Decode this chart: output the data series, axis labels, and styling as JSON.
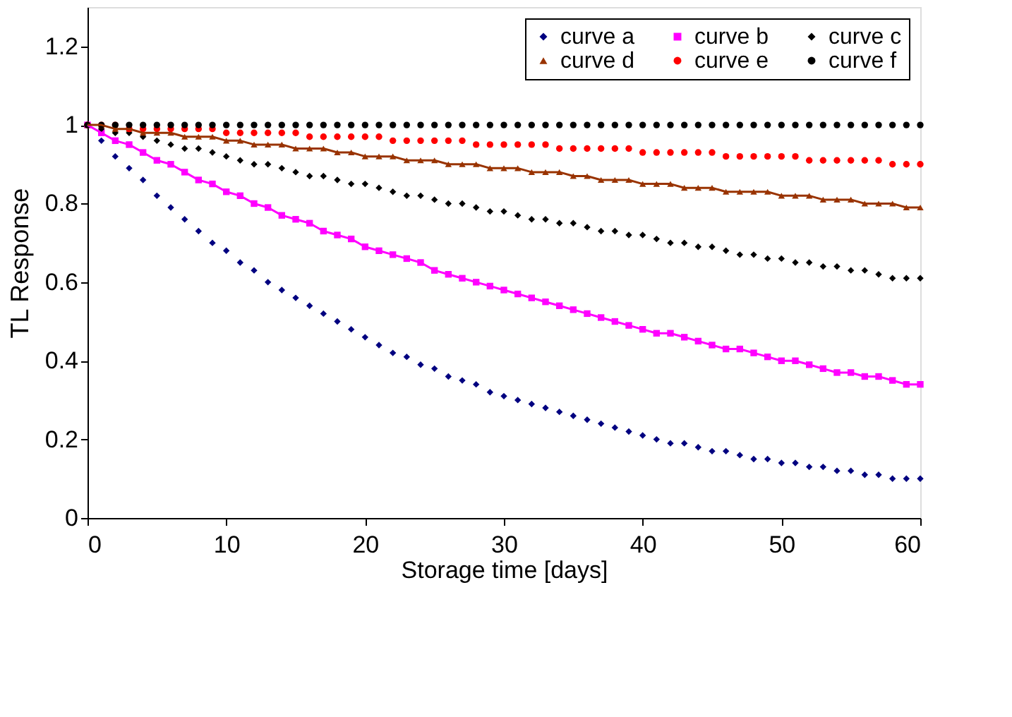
{
  "chart_data": {
    "type": "scatter",
    "xlabel": "Storage time [days]",
    "ylabel": "TL Response",
    "x": [
      0,
      1,
      2,
      3,
      4,
      5,
      6,
      7,
      8,
      9,
      10,
      11,
      12,
      13,
      14,
      15,
      16,
      17,
      18,
      19,
      20,
      21,
      22,
      23,
      24,
      25,
      26,
      27,
      28,
      29,
      30,
      31,
      32,
      33,
      34,
      35,
      36,
      37,
      38,
      39,
      40,
      41,
      42,
      43,
      44,
      45,
      46,
      47,
      48,
      49,
      50,
      51,
      52,
      53,
      54,
      55,
      56,
      57,
      58,
      59,
      60
    ],
    "series": [
      {
        "name": "curve a",
        "marker": "diamond",
        "color": "#000080",
        "values": [
          null,
          0.96,
          0.92,
          0.89,
          0.86,
          0.82,
          0.79,
          0.76,
          0.73,
          0.7,
          0.68,
          0.65,
          0.63,
          0.6,
          0.58,
          0.56,
          0.54,
          0.52,
          0.5,
          0.48,
          0.46,
          0.44,
          0.42,
          0.41,
          0.39,
          0.38,
          0.36,
          0.35,
          0.34,
          0.32,
          0.31,
          0.3,
          0.29,
          0.28,
          0.27,
          0.26,
          0.25,
          0.24,
          0.23,
          0.22,
          0.21,
          0.2,
          0.19,
          0.19,
          0.18,
          0.17,
          0.17,
          0.16,
          0.15,
          0.15,
          0.14,
          0.14,
          0.13,
          0.13,
          0.12,
          0.12,
          0.11,
          0.11,
          0.1,
          0.1,
          0.1
        ]
      },
      {
        "name": "curve b",
        "type": "line",
        "marker": "square",
        "color": "#ff00ff",
        "values": [
          1.0,
          0.98,
          0.96,
          0.95,
          0.93,
          0.91,
          0.9,
          0.88,
          0.86,
          0.85,
          0.83,
          0.82,
          0.8,
          0.79,
          0.77,
          0.76,
          0.75,
          0.73,
          0.72,
          0.71,
          0.69,
          0.68,
          0.67,
          0.66,
          0.65,
          0.63,
          0.62,
          0.61,
          0.6,
          0.59,
          0.58,
          0.57,
          0.56,
          0.55,
          0.54,
          0.53,
          0.52,
          0.51,
          0.5,
          0.49,
          0.48,
          0.47,
          0.47,
          0.46,
          0.45,
          0.44,
          0.43,
          0.43,
          0.42,
          0.41,
          0.4,
          0.4,
          0.39,
          0.38,
          0.37,
          0.37,
          0.36,
          0.36,
          0.35,
          0.34,
          0.34
        ]
      },
      {
        "name": "curve c",
        "marker": "diamond",
        "color": "#000000",
        "values": [
          1.0,
          0.99,
          0.98,
          0.98,
          0.97,
          0.96,
          0.95,
          0.94,
          0.94,
          0.93,
          0.92,
          0.91,
          0.9,
          0.9,
          0.89,
          0.88,
          0.87,
          0.87,
          0.86,
          0.85,
          0.85,
          0.84,
          0.83,
          0.82,
          0.82,
          0.81,
          0.8,
          0.8,
          0.79,
          0.78,
          0.78,
          0.77,
          0.76,
          0.76,
          0.75,
          0.75,
          0.74,
          0.73,
          0.73,
          0.72,
          0.72,
          0.71,
          0.7,
          0.7,
          0.69,
          0.69,
          0.68,
          0.67,
          0.67,
          0.66,
          0.66,
          0.65,
          0.65,
          0.64,
          0.64,
          0.63,
          0.63,
          0.62,
          0.61,
          0.61,
          0.61
        ]
      },
      {
        "name": "curve d",
        "type": "line",
        "marker": "triangle",
        "color": "#993300",
        "values": [
          1.0,
          1.0,
          0.99,
          0.99,
          0.98,
          0.98,
          0.98,
          0.97,
          0.97,
          0.97,
          0.96,
          0.96,
          0.95,
          0.95,
          0.95,
          0.94,
          0.94,
          0.94,
          0.93,
          0.93,
          0.92,
          0.92,
          0.92,
          0.91,
          0.91,
          0.91,
          0.9,
          0.9,
          0.9,
          0.89,
          0.89,
          0.89,
          0.88,
          0.88,
          0.88,
          0.87,
          0.87,
          0.86,
          0.86,
          0.86,
          0.85,
          0.85,
          0.85,
          0.84,
          0.84,
          0.84,
          0.83,
          0.83,
          0.83,
          0.83,
          0.82,
          0.82,
          0.82,
          0.81,
          0.81,
          0.81,
          0.8,
          0.8,
          0.8,
          0.79,
          0.79
        ]
      },
      {
        "name": "curve e",
        "marker": "circle",
        "color": "#ff0000",
        "values": [
          1.0,
          1.0,
          1.0,
          0.99,
          0.99,
          0.99,
          0.99,
          0.99,
          0.99,
          0.99,
          0.98,
          0.98,
          0.98,
          0.98,
          0.98,
          0.98,
          0.97,
          0.97,
          0.97,
          0.97,
          0.97,
          0.97,
          0.96,
          0.96,
          0.96,
          0.96,
          0.96,
          0.96,
          0.95,
          0.95,
          0.95,
          0.95,
          0.95,
          0.95,
          0.94,
          0.94,
          0.94,
          0.94,
          0.94,
          0.94,
          0.93,
          0.93,
          0.93,
          0.93,
          0.93,
          0.93,
          0.92,
          0.92,
          0.92,
          0.92,
          0.92,
          0.92,
          0.91,
          0.91,
          0.91,
          0.91,
          0.91,
          0.91,
          0.9,
          0.9,
          0.9
        ]
      },
      {
        "name": "curve f",
        "marker": "circle",
        "color": "#000000",
        "values": [
          1,
          1,
          1,
          1,
          1,
          1,
          1,
          1,
          1,
          1,
          1,
          1,
          1,
          1,
          1,
          1,
          1,
          1,
          1,
          1,
          1,
          1,
          1,
          1,
          1,
          1,
          1,
          1,
          1,
          1,
          1,
          1,
          1,
          1,
          1,
          1,
          1,
          1,
          1,
          1,
          1,
          1,
          1,
          1,
          1,
          1,
          1,
          1,
          1,
          1,
          1,
          1,
          1,
          1,
          1,
          1,
          1,
          1,
          1,
          1,
          1
        ]
      }
    ],
    "xlim": [
      0,
      60
    ],
    "xticks": [
      0,
      10,
      20,
      30,
      40,
      50,
      60
    ],
    "ylim": [
      0,
      1.3
    ],
    "yticks": [
      0,
      0.2,
      0.4,
      0.6,
      0.8,
      1,
      1.2
    ],
    "grid": false,
    "legend": "top right"
  }
}
